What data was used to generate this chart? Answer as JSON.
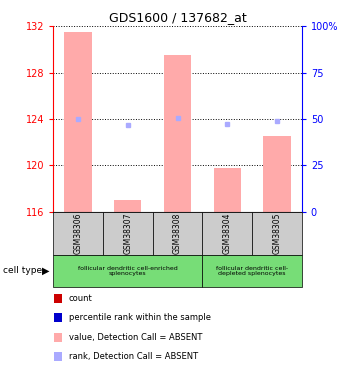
{
  "title": "GDS1600 / 137682_at",
  "samples": [
    "GSM38306",
    "GSM38307",
    "GSM38308",
    "GSM38304",
    "GSM38305"
  ],
  "bar_values": [
    131.5,
    117.0,
    129.5,
    119.8,
    122.5
  ],
  "rank_values": [
    124.0,
    123.5,
    124.1,
    123.6,
    123.8
  ],
  "bar_color": "#ffaaaa",
  "rank_color": "#aaaaff",
  "dot_color_red": "#cc0000",
  "dot_color_blue": "#0000cc",
  "ylim_left": [
    116,
    132
  ],
  "ylim_right": [
    0,
    100
  ],
  "yticks_left": [
    116,
    120,
    124,
    128,
    132
  ],
  "yticks_right": [
    0,
    25,
    50,
    75,
    100
  ],
  "ytick_labels_right": [
    "0",
    "25",
    "50",
    "75",
    "100%"
  ],
  "group1_label": "follicular dendritic cell-enriched\nsplenocytes",
  "group2_label": "follicular dendritic cell-\ndepleted splenocytes",
  "group1_indices": [
    0,
    1,
    2
  ],
  "group2_indices": [
    3,
    4
  ],
  "cell_type_label": "cell type",
  "legend_items": [
    {
      "color": "#cc0000",
      "label": "count"
    },
    {
      "color": "#0000cc",
      "label": "percentile rank within the sample"
    },
    {
      "color": "#ffaaaa",
      "label": "value, Detection Call = ABSENT"
    },
    {
      "color": "#aaaaff",
      "label": "rank, Detection Call = ABSENT"
    }
  ],
  "bar_width": 0.55,
  "base_value": 116
}
